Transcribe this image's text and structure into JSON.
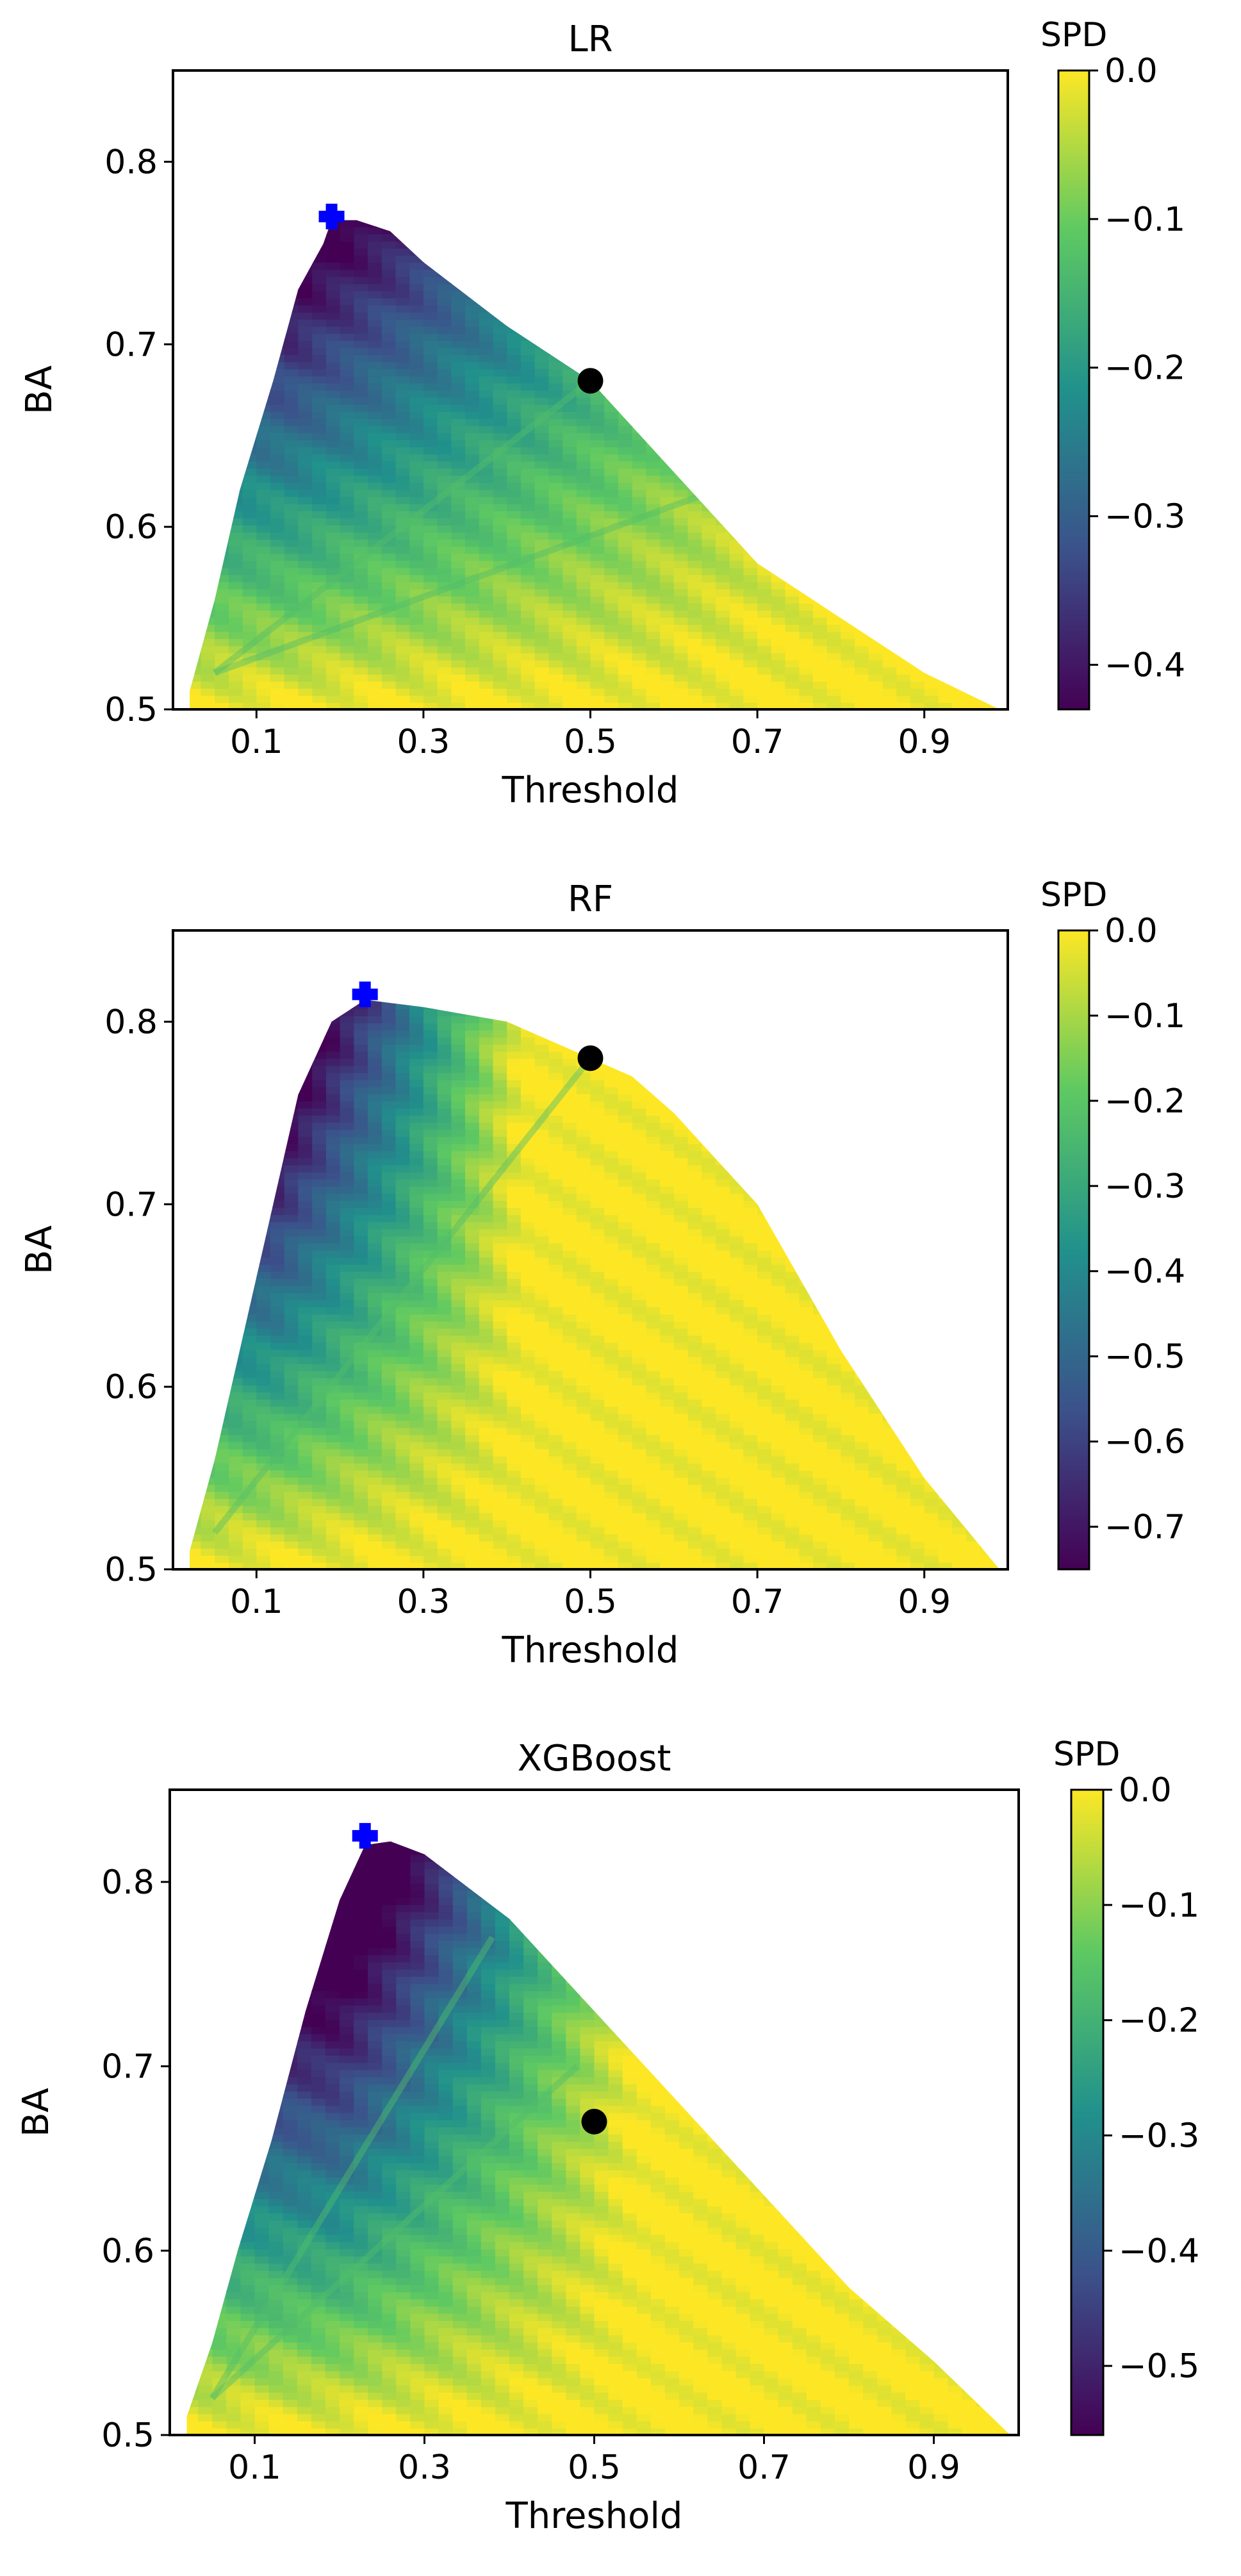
{
  "figure": {
    "layout": "three vertically stacked panels, each with its own colorbar on the right",
    "colormap": "viridis",
    "colormap_stops": [
      "#440154",
      "#3b528b",
      "#21918c",
      "#5ec962",
      "#fde725"
    ]
  },
  "chart_data": [
    {
      "type": "area",
      "title": "LR",
      "xlabel": "Threshold",
      "ylabel": "BA",
      "xticks": [
        "0.1",
        "0.3",
        "0.5",
        "0.7",
        "0.9"
      ],
      "yticks": [
        "0.5",
        "0.6",
        "0.7",
        "0.8"
      ],
      "xlim": [
        0.0,
        1.0
      ],
      "ylim": [
        0.5,
        0.85
      ],
      "colorbar": {
        "label": "SPD",
        "ticks": [
          "0.0",
          "−0.1",
          "−0.2",
          "−0.3",
          "−0.4"
        ],
        "range": [
          -0.43,
          0.0
        ]
      },
      "envelope": {
        "x": [
          0.02,
          0.05,
          0.08,
          0.12,
          0.15,
          0.18,
          0.19,
          0.22,
          0.26,
          0.3,
          0.4,
          0.5,
          0.6,
          0.7,
          0.8,
          0.9,
          0.99
        ],
        "ba": [
          0.51,
          0.56,
          0.62,
          0.68,
          0.73,
          0.755,
          0.768,
          0.768,
          0.762,
          0.745,
          0.71,
          0.68,
          0.63,
          0.58,
          0.55,
          0.52,
          0.5
        ]
      },
      "spd_min_x": 0.14,
      "spd_max_x": 0.85,
      "streaks": [
        {
          "x": 0.5,
          "ba": 0.68
        },
        {
          "x": 0.65,
          "ba": 0.62
        }
      ],
      "markers": [
        {
          "kind": "plus",
          "color": "#0000ff",
          "x": 0.19,
          "ba": 0.77
        },
        {
          "kind": "circle",
          "color": "#000000",
          "x": 0.5,
          "ba": 0.68
        }
      ]
    },
    {
      "type": "area",
      "title": "RF",
      "xlabel": "Threshold",
      "ylabel": "BA",
      "xticks": [
        "0.1",
        "0.3",
        "0.5",
        "0.7",
        "0.9"
      ],
      "yticks": [
        "0.5",
        "0.6",
        "0.7",
        "0.8"
      ],
      "xlim": [
        0.0,
        1.0
      ],
      "ylim": [
        0.5,
        0.85
      ],
      "colorbar": {
        "label": "SPD",
        "ticks": [
          "0.0",
          "−0.1",
          "−0.2",
          "−0.3",
          "−0.4",
          "−0.5",
          "−0.6",
          "−0.7"
        ],
        "range": [
          -0.75,
          0.0
        ]
      },
      "envelope": {
        "x": [
          0.02,
          0.05,
          0.08,
          0.12,
          0.15,
          0.19,
          0.23,
          0.3,
          0.4,
          0.5,
          0.55,
          0.6,
          0.7,
          0.8,
          0.9,
          0.99
        ],
        "ba": [
          0.51,
          0.56,
          0.62,
          0.7,
          0.76,
          0.8,
          0.812,
          0.808,
          0.8,
          0.78,
          0.77,
          0.75,
          0.7,
          0.62,
          0.55,
          0.5
        ]
      },
      "spd_min_x": 0.12,
      "spd_max_x": 0.42,
      "streaks": [
        {
          "x": 0.5,
          "ba": 0.78
        }
      ],
      "markers": [
        {
          "kind": "plus",
          "color": "#0000ff",
          "x": 0.23,
          "ba": 0.815
        },
        {
          "kind": "circle",
          "color": "#000000",
          "x": 0.5,
          "ba": 0.78
        }
      ]
    },
    {
      "type": "area",
      "title": "XGBoost",
      "xlabel": "Threshold",
      "ylabel": "BA",
      "xticks": [
        "0.1",
        "0.3",
        "0.5",
        "0.7",
        "0.9"
      ],
      "yticks": [
        "0.5",
        "0.6",
        "0.7",
        "0.8"
      ],
      "xlim": [
        0.0,
        1.0
      ],
      "ylim": [
        0.5,
        0.85
      ],
      "colorbar": {
        "label": "SPD",
        "ticks": [
          "0.0",
          "−0.1",
          "−0.2",
          "−0.3",
          "−0.4",
          "−0.5"
        ],
        "range": [
          -0.56,
          0.0
        ]
      },
      "envelope": {
        "x": [
          0.02,
          0.05,
          0.08,
          0.12,
          0.16,
          0.2,
          0.23,
          0.26,
          0.3,
          0.4,
          0.5,
          0.6,
          0.7,
          0.8,
          0.9,
          0.99
        ],
        "ba": [
          0.51,
          0.55,
          0.6,
          0.66,
          0.73,
          0.79,
          0.82,
          0.822,
          0.815,
          0.78,
          0.73,
          0.68,
          0.63,
          0.58,
          0.54,
          0.5
        ]
      },
      "spd_min_x": 0.2,
      "spd_max_x": 0.55,
      "streaks": [
        {
          "x": 0.48,
          "ba": 0.7
        },
        {
          "x": 0.38,
          "ba": 0.77
        }
      ],
      "markers": [
        {
          "kind": "plus",
          "color": "#0000ff",
          "x": 0.23,
          "ba": 0.825
        },
        {
          "kind": "circle",
          "color": "#000000",
          "x": 0.5,
          "ba": 0.67
        }
      ]
    }
  ]
}
